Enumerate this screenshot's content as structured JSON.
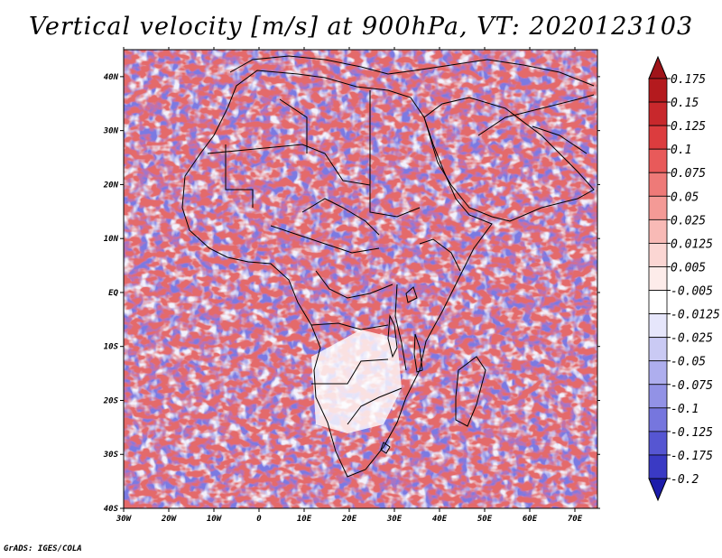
{
  "title": "Vertical velocity [m/s] at 900hPa, VT: 2020123103",
  "credit": "GrADS: IGES/COLA",
  "map": {
    "region": "Africa",
    "variable": "Vertical velocity",
    "units": "m/s",
    "level": "900hPa",
    "valid_time": "2020123103",
    "lon_range": [
      -30,
      75
    ],
    "lat_range": [
      -40,
      45
    ],
    "x_ticks": [
      "30W",
      "20W",
      "10W",
      "0",
      "10E",
      "20E",
      "30E",
      "40E",
      "50E",
      "60E",
      "70E"
    ],
    "y_ticks": [
      "40S",
      "30S",
      "20S",
      "10S",
      "EQ",
      "10N",
      "20N",
      "30N",
      "40N"
    ]
  },
  "colorbar": {
    "levels": [
      {
        "label": "0.175",
        "color": "#b41a1e"
      },
      {
        "label": "0.15",
        "color": "#c8282c"
      },
      {
        "label": "0.125",
        "color": "#dc3c3e"
      },
      {
        "label": "0.1",
        "color": "#e85a5a"
      },
      {
        "label": "0.075",
        "color": "#ee7a78"
      },
      {
        "label": "0.05",
        "color": "#f49a96"
      },
      {
        "label": "0.025",
        "color": "#f8bab6"
      },
      {
        "label": "0.0125",
        "color": "#fbd6d3"
      },
      {
        "label": "0.005",
        "color": "#fdecea"
      },
      {
        "label": "-0.005",
        "color": "#ffffff"
      },
      {
        "label": "-0.0125",
        "color": "#e6e6fb"
      },
      {
        "label": "-0.025",
        "color": "#cacaf4"
      },
      {
        "label": "-0.05",
        "color": "#aeaeee"
      },
      {
        "label": "-0.075",
        "color": "#9292e6"
      },
      {
        "label": "-0.1",
        "color": "#7676de"
      },
      {
        "label": "-0.125",
        "color": "#5656d2"
      },
      {
        "label": "-0.175",
        "color": "#3a3ac4"
      },
      {
        "label": "-0.2",
        "color": "#2626b2"
      }
    ],
    "top_cap_color": "#a0141a",
    "bottom_cap_color": "#1c1caa"
  }
}
